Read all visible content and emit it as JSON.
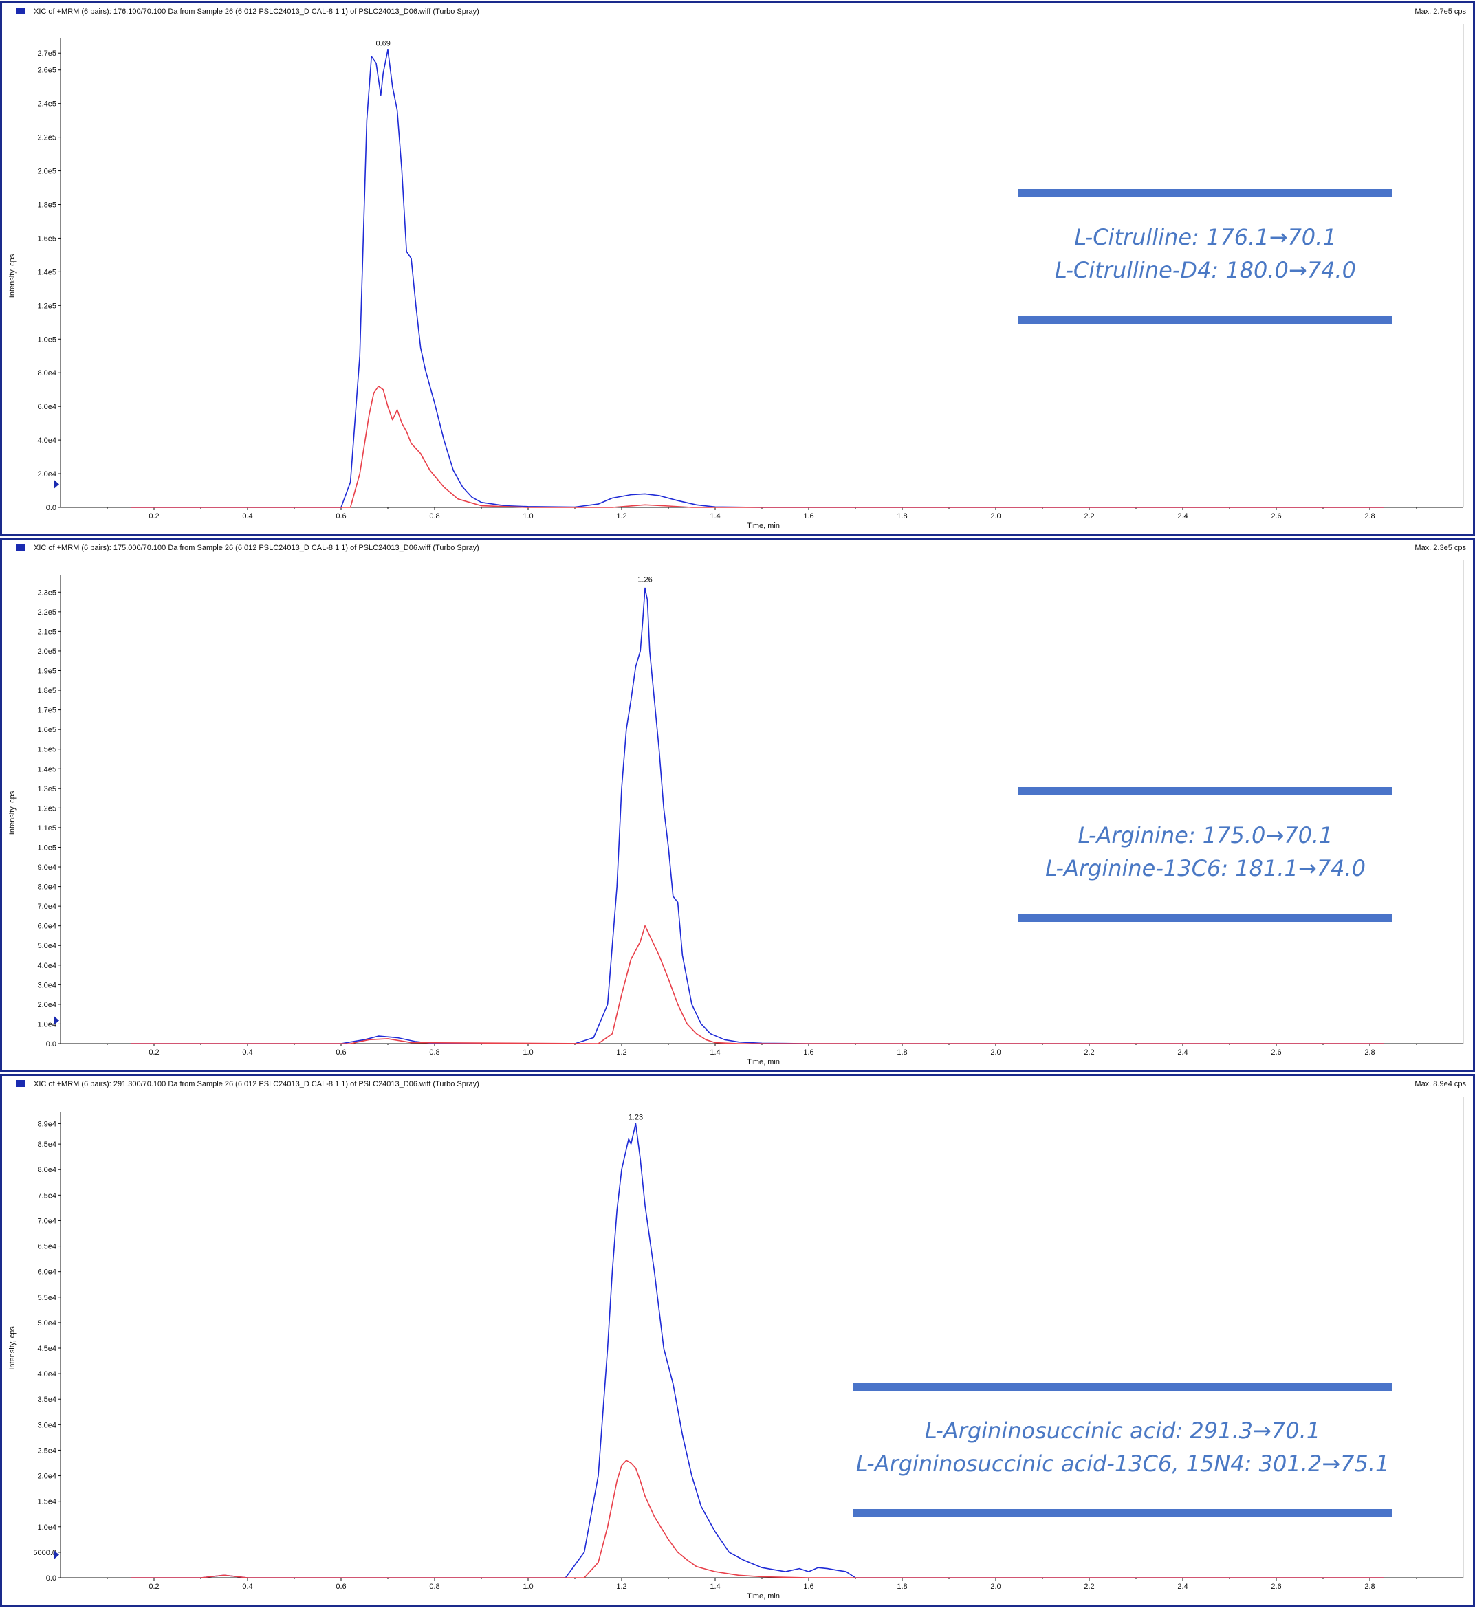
{
  "colors": {
    "analyte": "#1f2bd6",
    "internal_standard": "#e8404a",
    "frame": "#1a2a8c",
    "legend_text": "#4a78c4",
    "legend_bar": "#4a74c9"
  },
  "chart_data": [
    {
      "type": "line",
      "title": "XIC of +MRM (6 pairs): 176.100/70.100 Da  from Sample 26 (6 012 PSLC24013_D CAL-8 1 1) of PSLC24013_D06.wiff (Turbo Spray)",
      "max_label": "Max. 2.7e5 cps",
      "xlabel": "Time, min",
      "ylabel": "Intensity, cps",
      "xlim": [
        0,
        3.0
      ],
      "ylim": [
        0,
        275000
      ],
      "x_ticks": [
        "0.2",
        "0.4",
        "0.6",
        "0.8",
        "1.0",
        "1.2",
        "1.4",
        "1.6",
        "1.8",
        "2.0",
        "2.2",
        "2.4",
        "2.6",
        "2.8"
      ],
      "y_ticks": [
        {
          "v": 0,
          "t": "0.0"
        },
        {
          "v": 20000,
          "t": "2.0e4"
        },
        {
          "v": 40000,
          "t": "4.0e4"
        },
        {
          "v": 60000,
          "t": "6.0e4"
        },
        {
          "v": 80000,
          "t": "8.0e4"
        },
        {
          "v": 100000,
          "t": "1.0e5"
        },
        {
          "v": 120000,
          "t": "1.2e5"
        },
        {
          "v": 140000,
          "t": "1.4e5"
        },
        {
          "v": 160000,
          "t": "1.6e5"
        },
        {
          "v": 180000,
          "t": "1.8e5"
        },
        {
          "v": 200000,
          "t": "2.0e5"
        },
        {
          "v": 220000,
          "t": "2.2e5"
        },
        {
          "v": 240000,
          "t": "2.4e5"
        },
        {
          "v": 260000,
          "t": "2.6e5"
        },
        {
          "v": 270000,
          "t": "2.7e5"
        }
      ],
      "peak_label": {
        "x": 0.69,
        "y": 272000,
        "text": "0.69"
      },
      "series": [
        {
          "color": "#1f2bd6",
          "x": [
            0.15,
            0.6,
            0.62,
            0.64,
            0.655,
            0.665,
            0.675,
            0.685,
            0.69,
            0.7,
            0.71,
            0.72,
            0.73,
            0.74,
            0.75,
            0.76,
            0.77,
            0.78,
            0.8,
            0.82,
            0.84,
            0.86,
            0.88,
            0.9,
            0.95,
            1.0,
            1.1,
            1.15,
            1.18,
            1.22,
            1.25,
            1.28,
            1.32,
            1.36,
            1.4,
            1.5,
            2.83
          ],
          "y": [
            0,
            0,
            15000,
            90000,
            230000,
            268000,
            264000,
            245000,
            258000,
            272000,
            250000,
            236000,
            200000,
            152000,
            148000,
            120000,
            95000,
            82000,
            62000,
            40000,
            22000,
            12000,
            6000,
            3000,
            1000,
            500,
            200,
            2000,
            5500,
            7500,
            8000,
            7000,
            4000,
            1500,
            300,
            0,
            0
          ]
        },
        {
          "color": "#e8404a",
          "x": [
            0.15,
            0.62,
            0.64,
            0.66,
            0.67,
            0.68,
            0.69,
            0.7,
            0.71,
            0.72,
            0.73,
            0.74,
            0.75,
            0.77,
            0.79,
            0.82,
            0.85,
            0.9,
            1.0,
            1.18,
            1.25,
            1.3,
            1.35,
            2.83
          ],
          "y": [
            0,
            0,
            20000,
            55000,
            68000,
            72000,
            70000,
            60000,
            52000,
            58000,
            50000,
            45000,
            38000,
            32000,
            22000,
            12000,
            5000,
            1000,
            0,
            0,
            1500,
            800,
            0,
            0
          ]
        }
      ],
      "legend": [
        "L-Citrulline: 176.1→70.1",
        "L-Citrulline-D4: 180.0→74.0"
      ]
    },
    {
      "type": "line",
      "title": "XIC of +MRM (6 pairs): 175.000/70.100 Da  from Sample 26 (6 012 PSLC24013_D CAL-8 1 1) of PSLC24013_D06.wiff (Turbo Spray)",
      "max_label": "Max. 2.3e5 cps",
      "xlabel": "Time, min",
      "ylabel": "Intensity, cps",
      "xlim": [
        0,
        3.0
      ],
      "ylim": [
        0,
        235000
      ],
      "x_ticks": [
        "0.2",
        "0.4",
        "0.6",
        "0.8",
        "1.0",
        "1.2",
        "1.4",
        "1.6",
        "1.8",
        "2.0",
        "2.2",
        "2.4",
        "2.6",
        "2.8"
      ],
      "y_ticks": [
        {
          "v": 0,
          "t": "0.0"
        },
        {
          "v": 10000,
          "t": "1.0e4"
        },
        {
          "v": 20000,
          "t": "2.0e4"
        },
        {
          "v": 30000,
          "t": "3.0e4"
        },
        {
          "v": 40000,
          "t": "4.0e4"
        },
        {
          "v": 50000,
          "t": "5.0e4"
        },
        {
          "v": 60000,
          "t": "6.0e4"
        },
        {
          "v": 70000,
          "t": "7.0e4"
        },
        {
          "v": 80000,
          "t": "8.0e4"
        },
        {
          "v": 90000,
          "t": "9.0e4"
        },
        {
          "v": 100000,
          "t": "1.0e5"
        },
        {
          "v": 110000,
          "t": "1.1e5"
        },
        {
          "v": 120000,
          "t": "1.2e5"
        },
        {
          "v": 130000,
          "t": "1.3e5"
        },
        {
          "v": 140000,
          "t": "1.4e5"
        },
        {
          "v": 150000,
          "t": "1.5e5"
        },
        {
          "v": 160000,
          "t": "1.6e5"
        },
        {
          "v": 170000,
          "t": "1.7e5"
        },
        {
          "v": 180000,
          "t": "1.8e5"
        },
        {
          "v": 190000,
          "t": "1.9e5"
        },
        {
          "v": 200000,
          "t": "2.0e5"
        },
        {
          "v": 210000,
          "t": "2.1e5"
        },
        {
          "v": 220000,
          "t": "2.2e5"
        },
        {
          "v": 230000,
          "t": "2.3e5"
        }
      ],
      "peak_label": {
        "x": 1.25,
        "y": 233000,
        "text": "1.26"
      },
      "series": [
        {
          "color": "#1f2bd6",
          "x": [
            0.15,
            0.6,
            0.65,
            0.68,
            0.72,
            0.76,
            0.8,
            1.1,
            1.14,
            1.17,
            1.19,
            1.2,
            1.21,
            1.22,
            1.23,
            1.24,
            1.245,
            1.25,
            1.255,
            1.26,
            1.27,
            1.28,
            1.29,
            1.3,
            1.31,
            1.32,
            1.33,
            1.35,
            1.37,
            1.39,
            1.42,
            1.45,
            1.5,
            1.6,
            2.83
          ],
          "y": [
            0,
            0,
            2000,
            3800,
            3000,
            1000,
            0,
            0,
            3000,
            20000,
            80000,
            130000,
            160000,
            175000,
            192000,
            200000,
            215000,
            232000,
            226000,
            200000,
            175000,
            150000,
            120000,
            100000,
            75000,
            72000,
            45000,
            20000,
            10000,
            5000,
            2000,
            800,
            200,
            0,
            0
          ]
        },
        {
          "color": "#e8404a",
          "x": [
            0.15,
            0.62,
            0.66,
            0.7,
            0.75,
            1.15,
            1.18,
            1.2,
            1.22,
            1.24,
            1.25,
            1.26,
            1.27,
            1.28,
            1.3,
            1.32,
            1.34,
            1.36,
            1.38,
            1.4,
            1.45,
            2.83
          ],
          "y": [
            0,
            0,
            2000,
            2500,
            500,
            0,
            5000,
            25000,
            43000,
            52000,
            60000,
            55000,
            50000,
            45000,
            33000,
            20000,
            10000,
            5000,
            2000,
            500,
            0,
            0
          ]
        }
      ],
      "legend": [
        "L-Arginine: 175.0→70.1",
        "L-Arginine-13C6: 181.1→74.0"
      ]
    },
    {
      "type": "line",
      "title": "XIC of +MRM (6 pairs): 291.300/70.100 Da  from Sample 26 (6 012 PSLC24013_D CAL-8 1 1) of PSLC24013_D06.wiff (Turbo Spray)",
      "max_label": "Max. 8.9e4 cps",
      "xlabel": "Time, min",
      "ylabel": "Intensity, cps",
      "xlim": [
        0,
        3.0
      ],
      "ylim": [
        0,
        90000
      ],
      "x_ticks": [
        "0.2",
        "0.4",
        "0.6",
        "0.8",
        "1.0",
        "1.2",
        "1.4",
        "1.6",
        "1.8",
        "2.0",
        "2.2",
        "2.4",
        "2.6",
        "2.8"
      ],
      "y_ticks": [
        {
          "v": 0,
          "t": "0.0"
        },
        {
          "v": 5000,
          "t": "5000.0"
        },
        {
          "v": 10000,
          "t": "1.0e4"
        },
        {
          "v": 15000,
          "t": "1.5e4"
        },
        {
          "v": 20000,
          "t": "2.0e4"
        },
        {
          "v": 25000,
          "t": "2.5e4"
        },
        {
          "v": 30000,
          "t": "3.0e4"
        },
        {
          "v": 35000,
          "t": "3.5e4"
        },
        {
          "v": 40000,
          "t": "4.0e4"
        },
        {
          "v": 45000,
          "t": "4.5e4"
        },
        {
          "v": 50000,
          "t": "5.0e4"
        },
        {
          "v": 55000,
          "t": "5.5e4"
        },
        {
          "v": 60000,
          "t": "6.0e4"
        },
        {
          "v": 65000,
          "t": "6.5e4"
        },
        {
          "v": 70000,
          "t": "7.0e4"
        },
        {
          "v": 75000,
          "t": "7.5e4"
        },
        {
          "v": 80000,
          "t": "8.0e4"
        },
        {
          "v": 85000,
          "t": "8.5e4"
        },
        {
          "v": 89000,
          "t": "8.9e4"
        }
      ],
      "peak_label": {
        "x": 1.23,
        "y": 89000,
        "text": "1.23"
      },
      "series": [
        {
          "color": "#1f2bd6",
          "x": [
            0.15,
            0.3,
            0.35,
            0.4,
            1.08,
            1.12,
            1.15,
            1.17,
            1.18,
            1.19,
            1.2,
            1.21,
            1.215,
            1.22,
            1.225,
            1.23,
            1.24,
            1.25,
            1.27,
            1.29,
            1.31,
            1.33,
            1.35,
            1.37,
            1.4,
            1.43,
            1.46,
            1.5,
            1.55,
            1.58,
            1.6,
            1.62,
            1.64,
            1.66,
            1.68,
            1.7,
            2.83
          ],
          "y": [
            0,
            0,
            500,
            0,
            0,
            5000,
            20000,
            45000,
            60000,
            72000,
            80000,
            84000,
            86000,
            85000,
            87000,
            89000,
            82000,
            73000,
            60000,
            45000,
            38000,
            28000,
            20000,
            14000,
            9000,
            5000,
            3500,
            2000,
            1200,
            1800,
            1200,
            2000,
            1800,
            1500,
            1200,
            0,
            0
          ]
        },
        {
          "color": "#e8404a",
          "x": [
            0.15,
            0.3,
            0.35,
            0.4,
            1.12,
            1.15,
            1.17,
            1.19,
            1.2,
            1.21,
            1.22,
            1.23,
            1.24,
            1.25,
            1.27,
            1.29,
            1.3,
            1.32,
            1.34,
            1.36,
            1.4,
            1.45,
            1.5,
            1.6,
            2.83
          ],
          "y": [
            0,
            0,
            500,
            0,
            0,
            3000,
            10000,
            19000,
            22000,
            23000,
            22500,
            21500,
            19000,
            16000,
            12000,
            9000,
            7500,
            5000,
            3500,
            2200,
            1200,
            500,
            200,
            0,
            0
          ]
        }
      ],
      "legend": [
        "L-Argininosuccinic acid: 291.3→70.1",
        "L-Argininosuccinic acid-13C6, 15N4: 301.2→75.1"
      ]
    }
  ]
}
